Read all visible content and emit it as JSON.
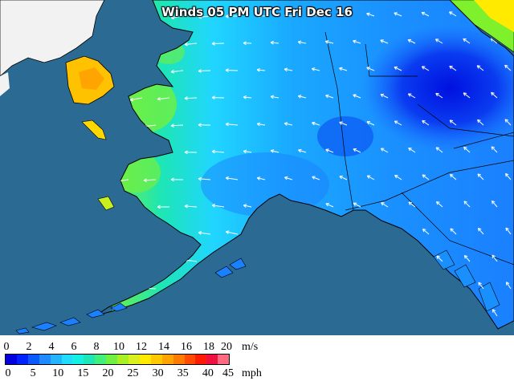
{
  "title": "Winds 05 PM UTC Fri Dec 16",
  "legend": {
    "ms_labels": [
      "0",
      "2",
      "4",
      "6",
      "8",
      "10",
      "12",
      "14",
      "16",
      "18",
      "20"
    ],
    "ms_unit": "m/s",
    "mph_labels": [
      "0",
      "5",
      "10",
      "15",
      "20",
      "25",
      "30",
      "35",
      "40",
      "45"
    ],
    "mph_unit": "mph",
    "colors": [
      "#0000e0",
      "#0022ff",
      "#0a5bff",
      "#1f8bff",
      "#27b4ff",
      "#22dcff",
      "#14f0e6",
      "#1ee6b4",
      "#40f078",
      "#70f040",
      "#a8f020",
      "#d8f020",
      "#ffea00",
      "#ffc800",
      "#ffa400",
      "#ff7a00",
      "#ff4a00",
      "#ff1a00",
      "#f01040",
      "#ff6a80"
    ]
  },
  "map": {
    "ocean_color": "#2a6a93",
    "foreign_land_color": "#f2f2f2",
    "region": "Alaska"
  }
}
